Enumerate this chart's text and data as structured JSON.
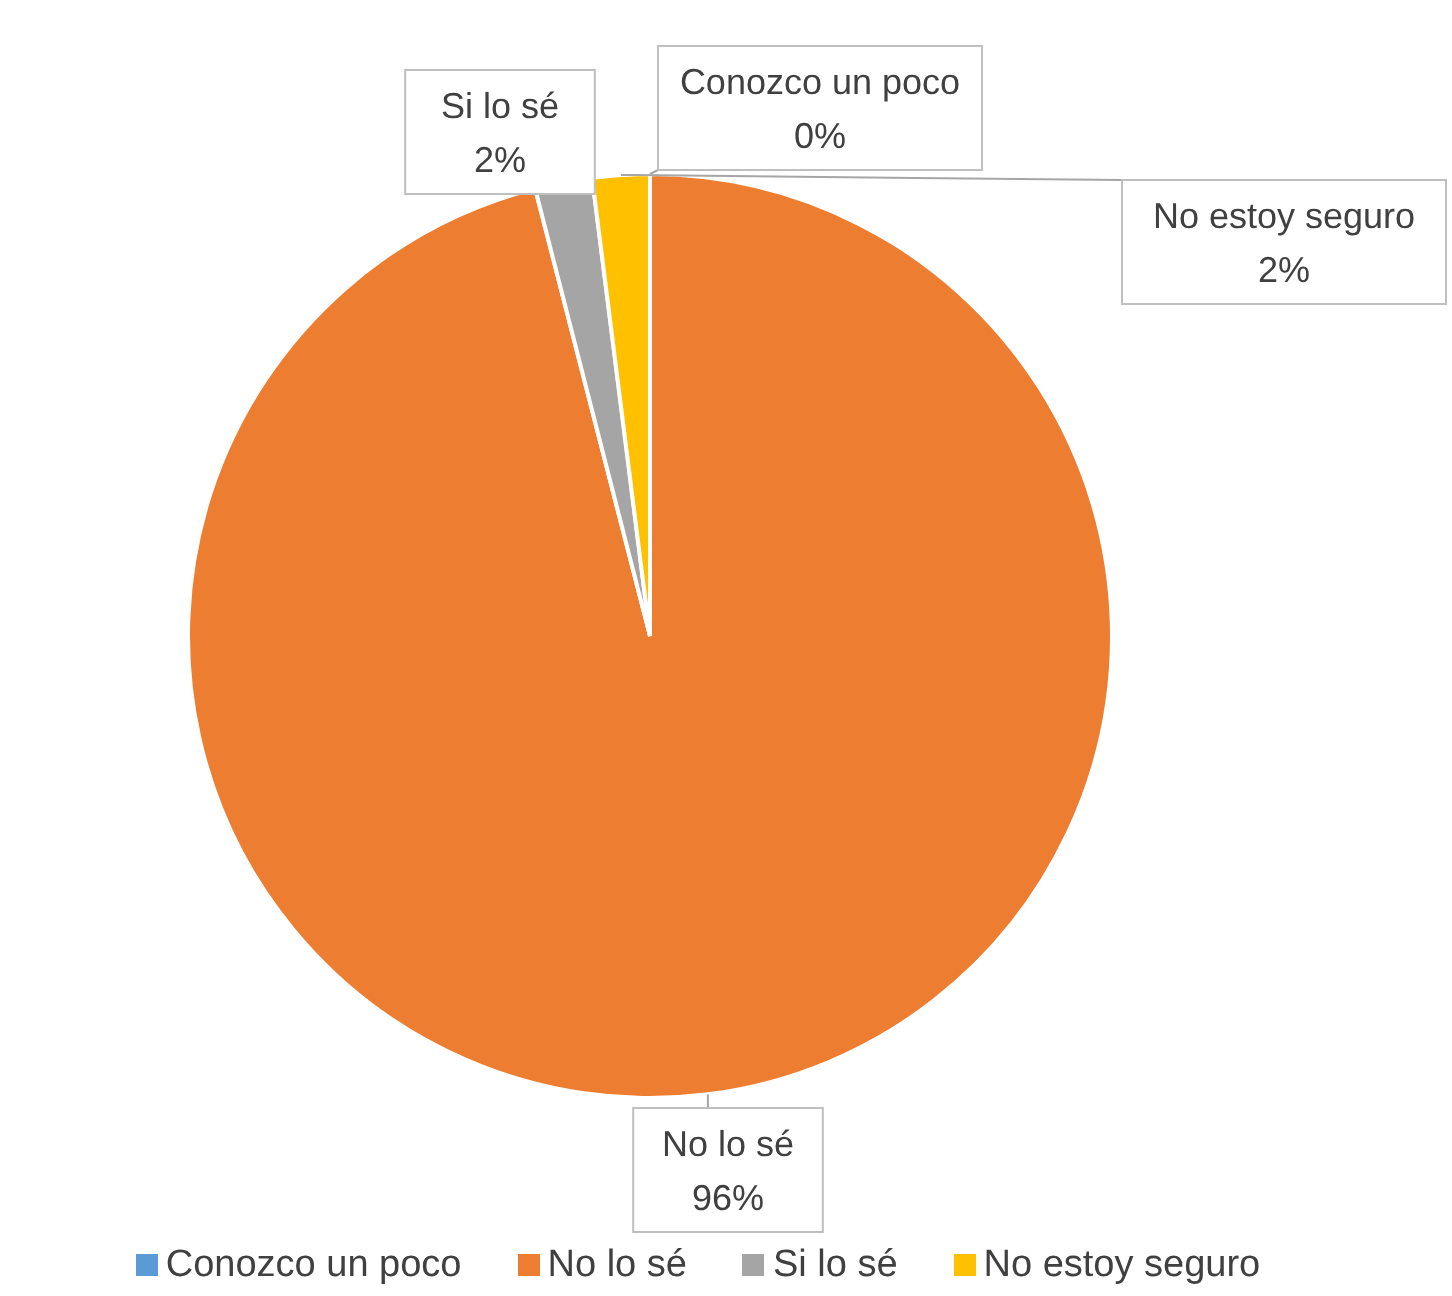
{
  "chart_data": {
    "type": "pie",
    "categories": [
      "Conozco un poco",
      "No lo sé",
      "Si lo sé",
      "No estoy seguro"
    ],
    "values": [
      0,
      96,
      2,
      2
    ],
    "colors": [
      "#5b9bd5",
      "#ed7d31",
      "#a5a5a5",
      "#ffc000"
    ],
    "value_labels": [
      "0%",
      "96%",
      "2%",
      "2%"
    ],
    "legend": "bottom"
  }
}
